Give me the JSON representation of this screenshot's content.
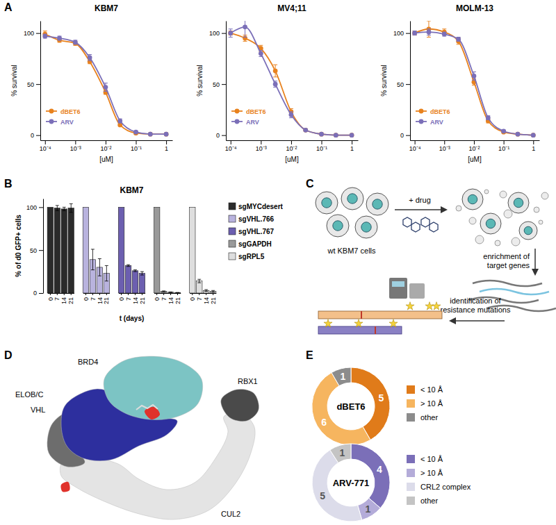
{
  "chart_data": [
    {
      "panel": "A",
      "type": "line",
      "title": "KBM7",
      "xlabel": "[uM]",
      "ylabel": "% survival",
      "log": "x",
      "xlim": [
        7e-05,
        1.6
      ],
      "xticks": [
        {
          "value": 0.0001,
          "label": "10⁻⁴"
        },
        {
          "value": 0.001,
          "label": "10⁻³"
        },
        {
          "value": 0.01,
          "label": "10⁻²"
        },
        {
          "value": 0.1,
          "label": "10⁻¹"
        },
        1
      ],
      "ylim": [
        -5,
        112
      ],
      "yticks": [
        0,
        50,
        100
      ],
      "legend": "lower left",
      "x": [
        0.0001,
        0.0003,
        0.001,
        0.003,
        0.01,
        0.03,
        0.1,
        0.3,
        1
      ],
      "series": [
        {
          "name": "dBET6",
          "color": "#e8821e",
          "marker": "circle",
          "values": [
            99,
            93,
            90,
            72,
            42,
            10,
            2,
            1,
            1
          ],
          "errors": [
            3,
            2,
            2,
            2,
            2,
            1,
            1,
            0,
            0
          ]
        },
        {
          "name": "ARV",
          "color": "#7b6fb8",
          "marker": "circle",
          "values": [
            97,
            95,
            91,
            76,
            47,
            14,
            3,
            1,
            1
          ],
          "errors": [
            2,
            2,
            2,
            3,
            4,
            2,
            1,
            0,
            0
          ]
        }
      ]
    },
    {
      "type": "line",
      "title": "MV4;11",
      "xlabel": "[uM]",
      "ylabel": "% survival",
      "log": "x",
      "xlim": [
        7e-05,
        1.6
      ],
      "xticks": [
        {
          "value": 0.0001,
          "label": "10⁻⁴"
        },
        {
          "value": 0.001,
          "label": "10⁻³"
        },
        {
          "value": 0.01,
          "label": "10⁻²"
        },
        {
          "value": 0.1,
          "label": "10⁻¹"
        },
        1
      ],
      "ylim": [
        -5,
        112
      ],
      "yticks": [
        0,
        50,
        100
      ],
      "legend": "lower left",
      "x": [
        0.0001,
        0.0003,
        0.001,
        0.003,
        0.01,
        0.03,
        0.1,
        0.3,
        1
      ],
      "series": [
        {
          "name": "dBET6",
          "color": "#e8821e",
          "marker": "circle",
          "values": [
            100,
            95,
            85,
            63,
            23,
            5,
            1,
            0,
            0
          ],
          "errors": [
            2,
            3,
            3,
            6,
            3,
            1,
            0,
            0,
            0
          ]
        },
        {
          "name": "ARV",
          "color": "#7b6fb8",
          "marker": "circle",
          "values": [
            100,
            106,
            80,
            50,
            20,
            5,
            1,
            0,
            0
          ],
          "errors": [
            4,
            10,
            3,
            3,
            3,
            1,
            0,
            0,
            0
          ]
        }
      ]
    },
    {
      "type": "line",
      "title": "MOLM-13",
      "xlabel": "[uM]",
      "ylabel": "% survival",
      "log": "x",
      "xlim": [
        7e-05,
        1.6
      ],
      "xticks": [
        {
          "value": 0.0001,
          "label": "10⁻⁴"
        },
        {
          "value": 0.001,
          "label": "10⁻³"
        },
        {
          "value": 0.01,
          "label": "10⁻²"
        },
        {
          "value": 0.1,
          "label": "10⁻¹"
        },
        1
      ],
      "ylim": [
        -5,
        112
      ],
      "yticks": [
        0,
        50,
        100
      ],
      "legend": "lower left",
      "x": [
        0.0001,
        0.0003,
        0.001,
        0.003,
        0.01,
        0.03,
        0.1,
        0.3,
        1
      ],
      "series": [
        {
          "name": "dBET6",
          "color": "#e8821e",
          "marker": "circle",
          "values": [
            100,
            104,
            101,
            92,
            52,
            14,
            3,
            1,
            0
          ],
          "errors": [
            2,
            8,
            3,
            3,
            3,
            2,
            1,
            0,
            0
          ]
        },
        {
          "name": "ARV",
          "color": "#7b6fb8",
          "marker": "circle",
          "values": [
            100,
            101,
            99,
            94,
            58,
            17,
            4,
            1,
            0
          ],
          "errors": [
            2,
            3,
            2,
            2,
            4,
            2,
            1,
            0,
            0
          ]
        }
      ]
    },
    {
      "panel": "B",
      "type": "bar",
      "title": "KBM7",
      "xlabel": "t (days)",
      "ylabel": "% of d0 GFP+ cells",
      "categories": [
        "0",
        "7",
        "14",
        "21"
      ],
      "ylim": [
        0,
        110
      ],
      "yticks": [
        0,
        50,
        100
      ],
      "legend": "right",
      "series": [
        {
          "name": "sgMYCdesert",
          "color": "#2b2b2b",
          "values": [
            100,
            99,
            98,
            99
          ],
          "errors": [
            0,
            3,
            2,
            5
          ]
        },
        {
          "name": "sgVHL.766",
          "color": "#b9b3de",
          "values": [
            100,
            39,
            30,
            23
          ],
          "errors": [
            0,
            12,
            10,
            9
          ]
        },
        {
          "name": "sgVHL.767",
          "color": "#6c5fb0",
          "values": [
            100,
            32,
            26,
            23
          ],
          "errors": [
            0,
            1,
            1,
            2
          ]
        },
        {
          "name": "sgGAPDH",
          "color": "#9a9a9a",
          "values": [
            100,
            2,
            1,
            0.5
          ],
          "errors": [
            0,
            0.5,
            0.3,
            0.2
          ]
        },
        {
          "name": "sgRPL5",
          "color": "#dedede",
          "values": [
            100,
            14,
            3,
            2
          ],
          "errors": [
            0,
            2,
            1,
            1
          ]
        }
      ]
    },
    {
      "panel": "E",
      "type": "pie",
      "title": "dBET6",
      "categories": [
        "< 10 Å",
        "> 10 Å",
        "other"
      ],
      "values": [
        5,
        6,
        1
      ],
      "colors": [
        "#e07b1a",
        "#f6b55f",
        "#8c8c8c"
      ],
      "data_labels": true,
      "legend": "right"
    },
    {
      "type": "pie",
      "title": "ARV-771",
      "categories": [
        "< 10 Å",
        "> 10 Å",
        "CRL2 complex",
        "other"
      ],
      "values": [
        4,
        1,
        5,
        1
      ],
      "colors": [
        "#7b6fb8",
        "#b4acd9",
        "#dcdcea",
        "#c4c4c4"
      ],
      "data_labels": true,
      "legend": "right"
    }
  ],
  "schematic": {
    "panel": "C",
    "drug": "+ drug",
    "cells": "wt KBM7 cells",
    "enrichment": [
      "enrichment of",
      "target genes"
    ],
    "identification": [
      "identification of",
      "resistance mutations"
    ]
  },
  "structure": {
    "panel": "D",
    "labels": [
      "BRD4",
      "ELOB/C",
      "VHL",
      "RBX1",
      "CUL2"
    ]
  }
}
